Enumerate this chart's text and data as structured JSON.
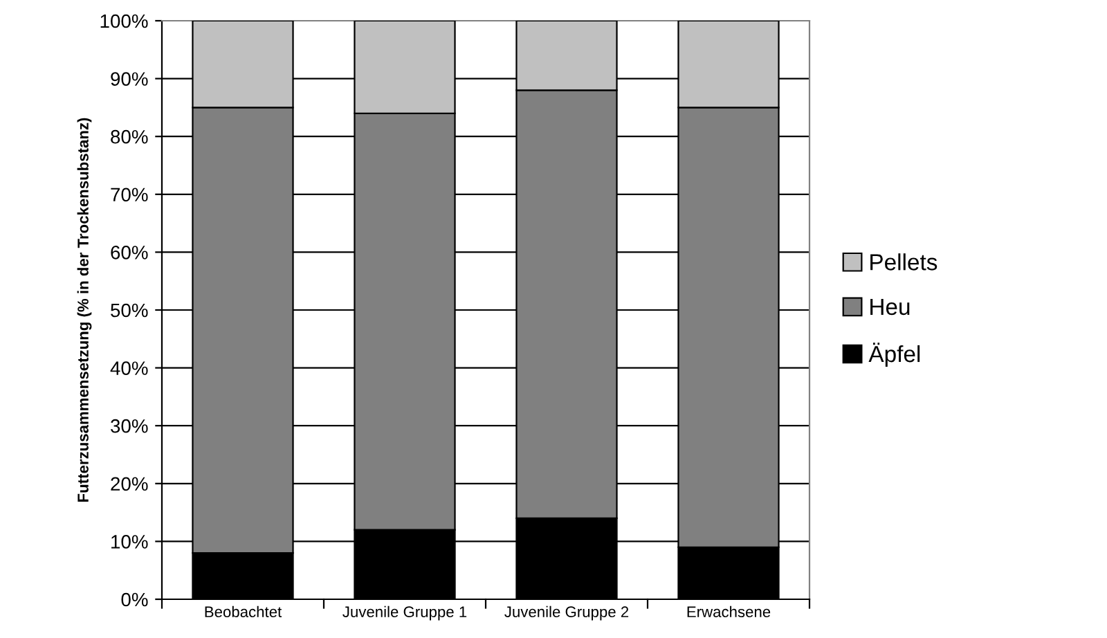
{
  "chart_data": {
    "type": "bar",
    "stacked": true,
    "ylabel": "Futterzusammensetzung (% in der Trockensubstanz)",
    "categories": [
      "Beobachtet",
      "Juvenile Gruppe 1",
      "Juvenile Gruppe 2",
      "Erwachsene"
    ],
    "series": [
      {
        "name": "Äpfel",
        "color": "#000000",
        "values": [
          8,
          12,
          14,
          9
        ]
      },
      {
        "name": "Heu",
        "color": "#808080",
        "values": [
          77,
          72,
          74,
          76
        ]
      },
      {
        "name": "Pellets",
        "color": "#c0c0c0",
        "values": [
          15,
          16,
          12,
          15
        ]
      }
    ],
    "ylim": [
      0,
      100
    ],
    "yticks": [
      {
        "value": 0,
        "label": "0%"
      },
      {
        "value": 10,
        "label": "10%"
      },
      {
        "value": 20,
        "label": "20%"
      },
      {
        "value": 30,
        "label": "30%"
      },
      {
        "value": 40,
        "label": "40%"
      },
      {
        "value": 50,
        "label": "50%"
      },
      {
        "value": 60,
        "label": "60%"
      },
      {
        "value": 70,
        "label": "70%"
      },
      {
        "value": 80,
        "label": "80%"
      },
      {
        "value": 90,
        "label": "90%"
      },
      {
        "value": 100,
        "label": "100%"
      }
    ],
    "grid": "y",
    "legend": "right"
  }
}
